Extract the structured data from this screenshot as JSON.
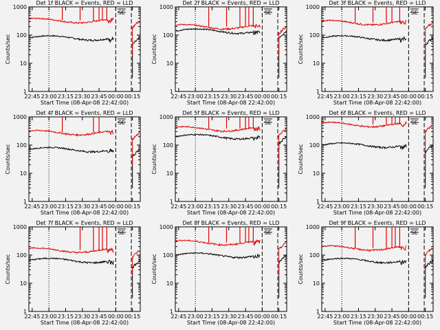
{
  "figure": {
    "xlabel": "Start Time (08-Apr-08 22:42:00)",
    "ylabel": "Counts/sec",
    "x_ticks": [
      "22:45",
      "23:00",
      "23:15",
      "23:30",
      "23:45",
      "00:00",
      "00:15"
    ],
    "y_ticks": [
      "1",
      "10",
      "100",
      "1000"
    ],
    "flag_label": "SE",
    "colors": {
      "events": "#000000",
      "lld": "#e00000",
      "background": "#f2f2f2"
    }
  },
  "chart_data": [
    {
      "type": "line",
      "title": "Det 1f BLACK = Events, RED = LLD",
      "xlabel": "Start Time (08-Apr-08 22:42:00)",
      "ylabel": "Counts/sec",
      "y_scale": "log",
      "ylim": [
        1,
        1000
      ],
      "xlim_minutes_after_2242": [
        0,
        100
      ],
      "series": [
        {
          "name": "Events",
          "color": "#000000",
          "level": 80
        },
        {
          "name": "LLD",
          "color": "#e00000",
          "level": 330
        }
      ]
    },
    {
      "type": "line",
      "title": "Det 2f BLACK = Events, RED = LLD",
      "xlabel": "Start Time (08-Apr-08 22:42:00)",
      "ylabel": "Counts/sec",
      "y_scale": "log",
      "ylim": [
        1,
        1000
      ],
      "xlim_minutes_after_2242": [
        0,
        100
      ],
      "series": [
        {
          "name": "Events",
          "color": "#000000",
          "level": 140
        },
        {
          "name": "LLD",
          "color": "#e00000",
          "level": 200
        }
      ]
    },
    {
      "type": "line",
      "title": "Det 3f BLACK = Events, RED = LLD",
      "xlabel": "Start Time (08-Apr-08 22:42:00)",
      "ylabel": "Counts/sec",
      "y_scale": "log",
      "ylim": [
        1,
        1000
      ],
      "xlim_minutes_after_2242": [
        0,
        100
      ],
      "series": [
        {
          "name": "Events",
          "color": "#000000",
          "level": 80
        },
        {
          "name": "LLD",
          "color": "#e00000",
          "level": 280
        }
      ]
    },
    {
      "type": "line",
      "title": "Det 4f BLACK = Events, RED = LLD",
      "xlabel": "Start Time (08-Apr-08 22:42:00)",
      "ylabel": "Counts/sec",
      "y_scale": "log",
      "ylim": [
        1,
        1000
      ],
      "xlim_minutes_after_2242": [
        0,
        100
      ],
      "series": [
        {
          "name": "Events",
          "color": "#000000",
          "level": 70
        },
        {
          "name": "LLD",
          "color": "#e00000",
          "level": 280
        }
      ]
    },
    {
      "type": "line",
      "title": "Det 5f BLACK = Events, RED = LLD",
      "xlabel": "Start Time (08-Apr-08 22:42:00)",
      "ylabel": "Counts/sec",
      "y_scale": "log",
      "ylim": [
        1,
        1000
      ],
      "xlim_minutes_after_2242": [
        0,
        100
      ],
      "series": [
        {
          "name": "Events",
          "color": "#000000",
          "level": 200
        },
        {
          "name": "LLD",
          "color": "#e00000",
          "level": 380
        }
      ]
    },
    {
      "type": "line",
      "title": "Det 6f BLACK = Events, RED = LLD",
      "xlabel": "Start Time (08-Apr-08 22:42:00)",
      "ylabel": "Counts/sec",
      "y_scale": "log",
      "ylim": [
        1,
        1000
      ],
      "xlim_minutes_after_2242": [
        0,
        100
      ],
      "series": [
        {
          "name": "Events",
          "color": "#000000",
          "level": 100
        },
        {
          "name": "LLD",
          "color": "#e00000",
          "level": 540
        }
      ]
    },
    {
      "type": "line",
      "title": "Det 7f BLACK = Events, RED = LLD",
      "xlabel": "Start Time (08-Apr-08 22:42:00)",
      "ylabel": "Counts/sec",
      "y_scale": "log",
      "ylim": [
        1,
        1000
      ],
      "xlim_minutes_after_2242": [
        0,
        100
      ],
      "series": [
        {
          "name": "Events",
          "color": "#000000",
          "level": 65
        },
        {
          "name": "LLD",
          "color": "#e00000",
          "level": 150
        }
      ]
    },
    {
      "type": "line",
      "title": "Det 8f BLACK = Events, RED = LLD",
      "xlabel": "Start Time (08-Apr-08 22:42:00)",
      "ylabel": "Counts/sec",
      "y_scale": "log",
      "ylim": [
        1,
        1000
      ],
      "xlim_minutes_after_2242": [
        0,
        100
      ],
      "series": [
        {
          "name": "Events",
          "color": "#000000",
          "level": 100
        },
        {
          "name": "LLD",
          "color": "#e00000",
          "level": 280
        }
      ]
    },
    {
      "type": "line",
      "title": "Det 9f BLACK = Events, RED = LLD",
      "xlabel": "Start Time (08-Apr-08 22:42:00)",
      "ylabel": "Counts/sec",
      "y_scale": "log",
      "ylim": [
        1,
        1000
      ],
      "xlim_minutes_after_2242": [
        0,
        100
      ],
      "series": [
        {
          "name": "Events",
          "color": "#000000",
          "level": 65
        },
        {
          "name": "LLD",
          "color": "#e00000",
          "level": 180
        }
      ]
    }
  ]
}
